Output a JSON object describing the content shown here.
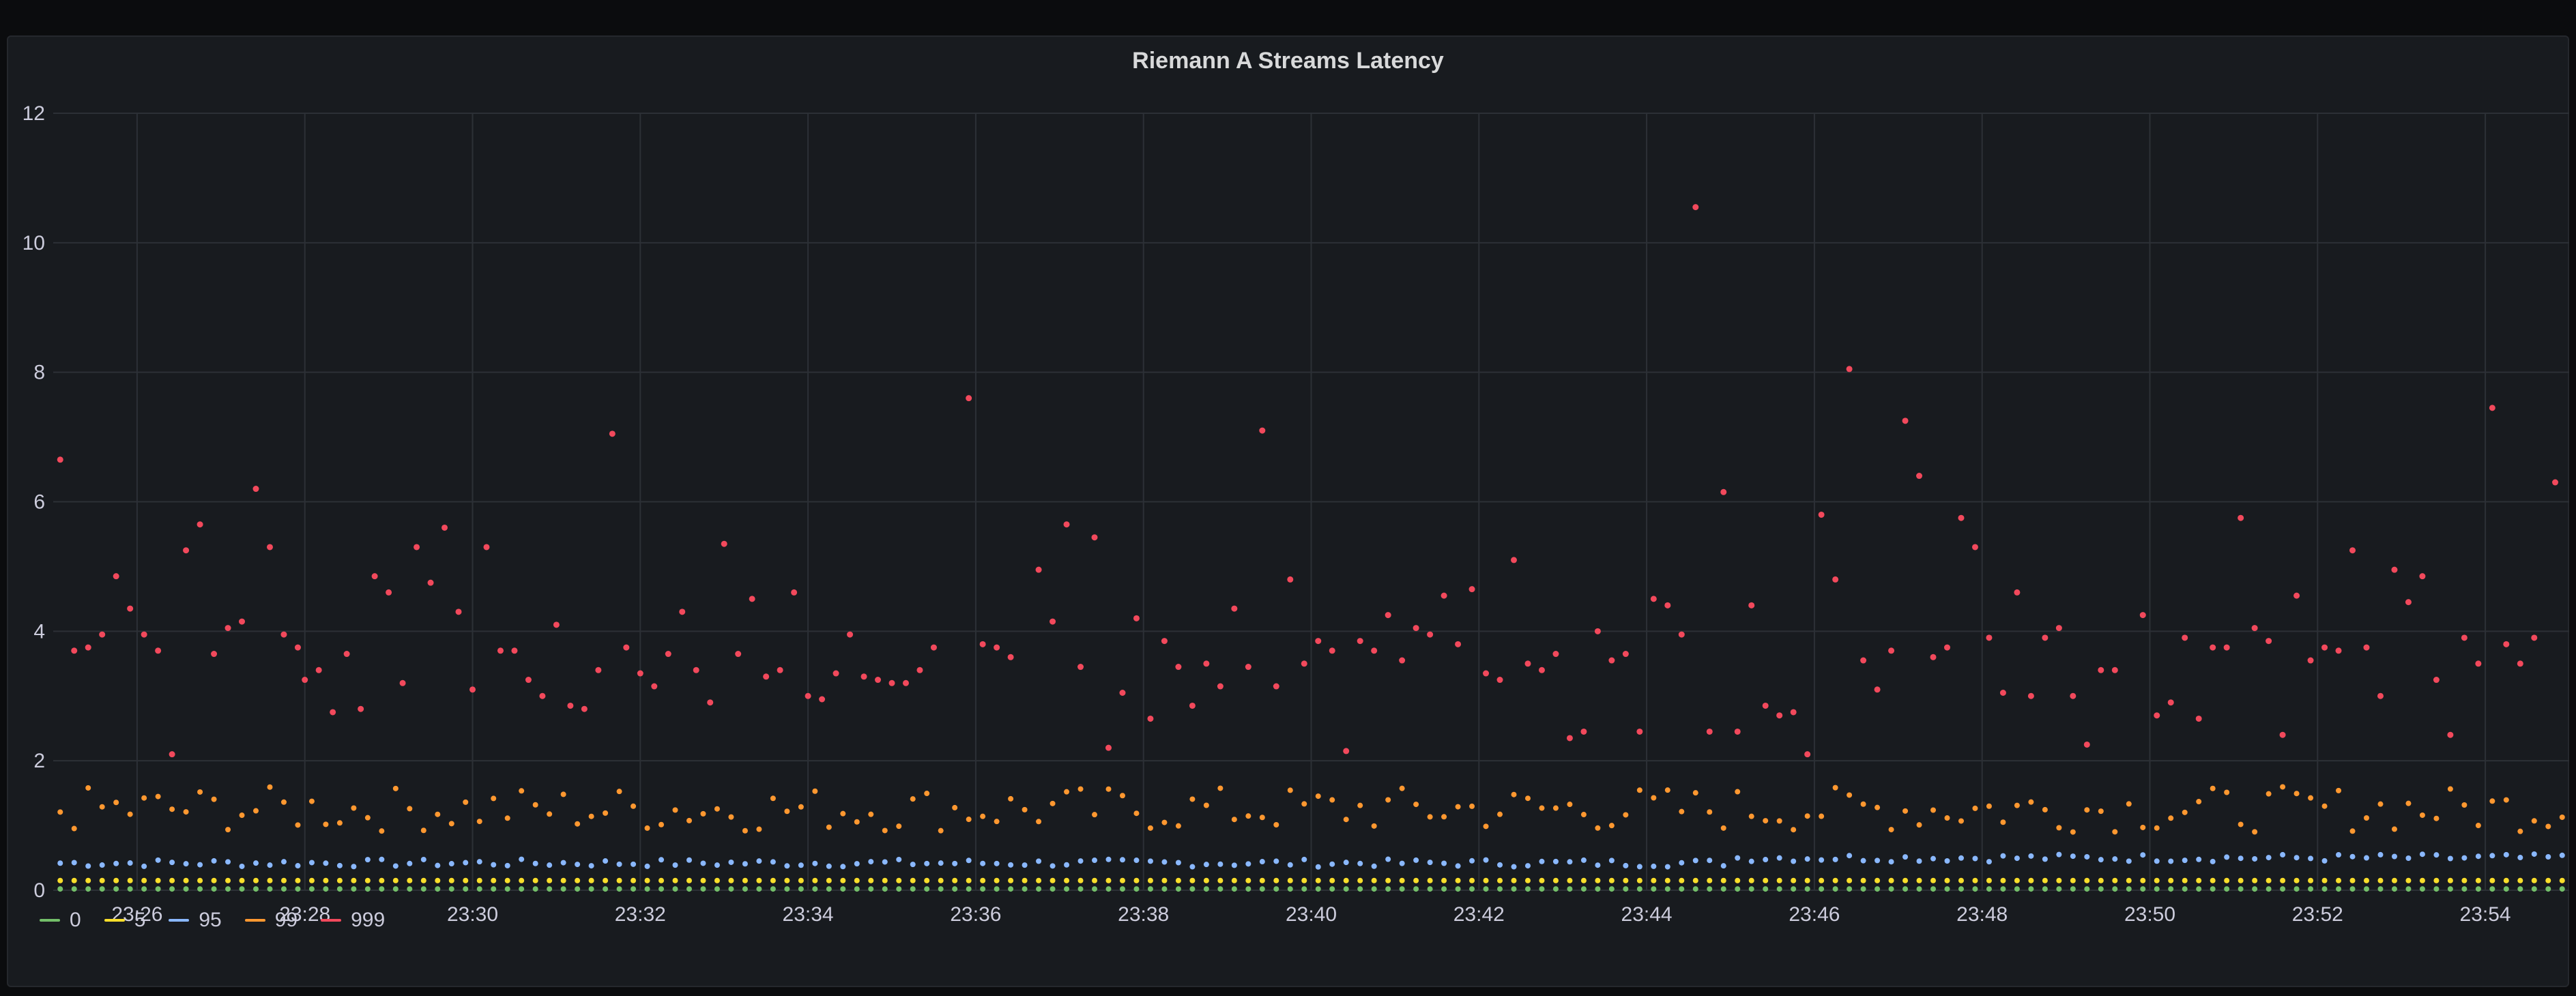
{
  "panel": {
    "title": "Riemann A Streams Latency"
  },
  "chart_data": {
    "type": "scatter",
    "title": "Riemann A Streams Latency",
    "x_tick_labels": [
      "23:26",
      "23:28",
      "23:30",
      "23:32",
      "23:34",
      "23:36",
      "23:38",
      "23:40",
      "23:42",
      "23:44",
      "23:46",
      "23:48",
      "23:50",
      "23:52",
      "23:54"
    ],
    "y_ticks": [
      0,
      2,
      4,
      6,
      8,
      10,
      12
    ],
    "ylim": [
      0,
      12
    ],
    "xlim_minutes": [
      "23:25",
      "23:55"
    ],
    "grid": true,
    "legend_position": "bottom-left",
    "series": [
      {
        "name": "0",
        "color": "#73bf69",
        "constant": 0.02
      },
      {
        "name": "5",
        "color": "#fade2a",
        "constant": 0.15
      },
      {
        "name": "95",
        "color": "#8ab8ff",
        "base": 0.42,
        "jitter": 0.06
      },
      {
        "name": "99",
        "color": "#ff9830",
        "base": 1.25,
        "jitter": 0.35
      },
      {
        "name": "999",
        "color": "#f2495c",
        "points": [
          {
            "t": "23:25:05",
            "v": 6.65
          },
          {
            "t": "23:25:15",
            "v": 3.7
          },
          {
            "t": "23:25:25",
            "v": 3.75
          },
          {
            "t": "23:25:35",
            "v": 3.95
          },
          {
            "t": "23:25:45",
            "v": 4.85
          },
          {
            "t": "23:25:55",
            "v": 4.35
          },
          {
            "t": "23:26:05",
            "v": 3.95
          },
          {
            "t": "23:26:15",
            "v": 3.7
          },
          {
            "t": "23:26:25",
            "v": 2.1
          },
          {
            "t": "23:26:35",
            "v": 5.25
          },
          {
            "t": "23:26:45",
            "v": 5.65
          },
          {
            "t": "23:26:55",
            "v": 3.65
          },
          {
            "t": "23:27:05",
            "v": 4.05
          },
          {
            "t": "23:27:15",
            "v": 4.15
          },
          {
            "t": "23:27:25",
            "v": 6.2
          },
          {
            "t": "23:27:35",
            "v": 5.3
          },
          {
            "t": "23:27:45",
            "v": 3.95
          },
          {
            "t": "23:27:55",
            "v": 3.75
          },
          {
            "t": "23:28:00",
            "v": 3.25
          },
          {
            "t": "23:28:10",
            "v": 3.4
          },
          {
            "t": "23:28:20",
            "v": 2.75
          },
          {
            "t": "23:28:30",
            "v": 3.65
          },
          {
            "t": "23:28:40",
            "v": 2.8
          },
          {
            "t": "23:28:50",
            "v": 4.85
          },
          {
            "t": "23:29:00",
            "v": 4.6
          },
          {
            "t": "23:29:10",
            "v": 3.2
          },
          {
            "t": "23:29:20",
            "v": 5.3
          },
          {
            "t": "23:29:30",
            "v": 4.75
          },
          {
            "t": "23:29:40",
            "v": 5.6
          },
          {
            "t": "23:29:50",
            "v": 4.3
          },
          {
            "t": "23:30:00",
            "v": 3.1
          },
          {
            "t": "23:30:10",
            "v": 5.3
          },
          {
            "t": "23:30:20",
            "v": 3.7
          },
          {
            "t": "23:30:30",
            "v": 3.7
          },
          {
            "t": "23:30:40",
            "v": 3.25
          },
          {
            "t": "23:30:50",
            "v": 3.0
          },
          {
            "t": "23:31:00",
            "v": 4.1
          },
          {
            "t": "23:31:10",
            "v": 2.85
          },
          {
            "t": "23:31:20",
            "v": 2.8
          },
          {
            "t": "23:31:30",
            "v": 3.4
          },
          {
            "t": "23:31:40",
            "v": 7.05
          },
          {
            "t": "23:31:50",
            "v": 3.75
          },
          {
            "t": "23:32:00",
            "v": 3.35
          },
          {
            "t": "23:32:10",
            "v": 3.15
          },
          {
            "t": "23:32:20",
            "v": 3.65
          },
          {
            "t": "23:32:30",
            "v": 4.3
          },
          {
            "t": "23:32:40",
            "v": 3.4
          },
          {
            "t": "23:32:50",
            "v": 2.9
          },
          {
            "t": "23:33:00",
            "v": 5.35
          },
          {
            "t": "23:33:10",
            "v": 3.65
          },
          {
            "t": "23:33:20",
            "v": 4.5
          },
          {
            "t": "23:33:30",
            "v": 3.3
          },
          {
            "t": "23:33:40",
            "v": 3.4
          },
          {
            "t": "23:33:50",
            "v": 4.6
          },
          {
            "t": "23:34:00",
            "v": 3.0
          },
          {
            "t": "23:34:10",
            "v": 2.95
          },
          {
            "t": "23:34:20",
            "v": 3.35
          },
          {
            "t": "23:34:30",
            "v": 3.95
          },
          {
            "t": "23:34:40",
            "v": 3.3
          },
          {
            "t": "23:34:50",
            "v": 3.25
          },
          {
            "t": "23:35:00",
            "v": 3.2
          },
          {
            "t": "23:35:10",
            "v": 3.2
          },
          {
            "t": "23:35:20",
            "v": 3.4
          },
          {
            "t": "23:35:30",
            "v": 3.75
          },
          {
            "t": "23:35:55",
            "v": 7.6
          },
          {
            "t": "23:36:05",
            "v": 3.8
          },
          {
            "t": "23:36:15",
            "v": 3.75
          },
          {
            "t": "23:36:25",
            "v": 3.6
          },
          {
            "t": "23:36:45",
            "v": 4.95
          },
          {
            "t": "23:36:55",
            "v": 4.15
          },
          {
            "t": "23:37:05",
            "v": 5.65
          },
          {
            "t": "23:37:15",
            "v": 3.45
          },
          {
            "t": "23:37:25",
            "v": 5.45
          },
          {
            "t": "23:37:35",
            "v": 2.2
          },
          {
            "t": "23:37:45",
            "v": 3.05
          },
          {
            "t": "23:37:55",
            "v": 4.2
          },
          {
            "t": "23:38:05",
            "v": 2.65
          },
          {
            "t": "23:38:15",
            "v": 3.85
          },
          {
            "t": "23:38:25",
            "v": 3.45
          },
          {
            "t": "23:38:35",
            "v": 2.85
          },
          {
            "t": "23:38:45",
            "v": 3.5
          },
          {
            "t": "23:38:55",
            "v": 3.15
          },
          {
            "t": "23:39:05",
            "v": 4.35
          },
          {
            "t": "23:39:15",
            "v": 3.45
          },
          {
            "t": "23:39:25",
            "v": 7.1
          },
          {
            "t": "23:39:35",
            "v": 3.15
          },
          {
            "t": "23:39:45",
            "v": 4.8
          },
          {
            "t": "23:39:55",
            "v": 3.5
          },
          {
            "t": "23:40:05",
            "v": 3.85
          },
          {
            "t": "23:40:15",
            "v": 3.7
          },
          {
            "t": "23:40:25",
            "v": 2.15
          },
          {
            "t": "23:40:35",
            "v": 3.85
          },
          {
            "t": "23:40:45",
            "v": 3.7
          },
          {
            "t": "23:40:55",
            "v": 4.25
          },
          {
            "t": "23:41:05",
            "v": 3.55
          },
          {
            "t": "23:41:15",
            "v": 4.05
          },
          {
            "t": "23:41:25",
            "v": 3.95
          },
          {
            "t": "23:41:35",
            "v": 4.55
          },
          {
            "t": "23:41:45",
            "v": 3.8
          },
          {
            "t": "23:41:55",
            "v": 4.65
          },
          {
            "t": "23:42:05",
            "v": 3.35
          },
          {
            "t": "23:42:15",
            "v": 3.25
          },
          {
            "t": "23:42:25",
            "v": 5.1
          },
          {
            "t": "23:42:35",
            "v": 3.5
          },
          {
            "t": "23:42:45",
            "v": 3.4
          },
          {
            "t": "23:42:55",
            "v": 3.65
          },
          {
            "t": "23:43:05",
            "v": 2.35
          },
          {
            "t": "23:43:15",
            "v": 2.45
          },
          {
            "t": "23:43:25",
            "v": 4.0
          },
          {
            "t": "23:43:35",
            "v": 3.55
          },
          {
            "t": "23:43:45",
            "v": 3.65
          },
          {
            "t": "23:43:55",
            "v": 2.45
          },
          {
            "t": "23:44:05",
            "v": 4.5
          },
          {
            "t": "23:44:15",
            "v": 4.4
          },
          {
            "t": "23:44:25",
            "v": 3.95
          },
          {
            "t": "23:44:35",
            "v": 10.55
          },
          {
            "t": "23:44:45",
            "v": 2.45
          },
          {
            "t": "23:44:55",
            "v": 6.15
          },
          {
            "t": "23:45:05",
            "v": 2.45
          },
          {
            "t": "23:45:15",
            "v": 4.4
          },
          {
            "t": "23:45:25",
            "v": 2.85
          },
          {
            "t": "23:45:35",
            "v": 2.7
          },
          {
            "t": "23:45:45",
            "v": 2.75
          },
          {
            "t": "23:45:55",
            "v": 2.1
          },
          {
            "t": "23:46:05",
            "v": 5.8
          },
          {
            "t": "23:46:15",
            "v": 4.8
          },
          {
            "t": "23:46:25",
            "v": 8.05
          },
          {
            "t": "23:46:35",
            "v": 3.55
          },
          {
            "t": "23:46:45",
            "v": 3.1
          },
          {
            "t": "23:46:55",
            "v": 3.7
          },
          {
            "t": "23:47:05",
            "v": 7.25
          },
          {
            "t": "23:47:15",
            "v": 6.4
          },
          {
            "t": "23:47:25",
            "v": 3.6
          },
          {
            "t": "23:47:35",
            "v": 3.75
          },
          {
            "t": "23:47:45",
            "v": 5.75
          },
          {
            "t": "23:47:55",
            "v": 5.3
          },
          {
            "t": "23:48:05",
            "v": 3.9
          },
          {
            "t": "23:48:15",
            "v": 3.05
          },
          {
            "t": "23:48:25",
            "v": 4.6
          },
          {
            "t": "23:48:35",
            "v": 3.0
          },
          {
            "t": "23:48:45",
            "v": 3.9
          },
          {
            "t": "23:48:55",
            "v": 4.05
          },
          {
            "t": "23:49:05",
            "v": 3.0
          },
          {
            "t": "23:49:15",
            "v": 2.25
          },
          {
            "t": "23:49:25",
            "v": 3.4
          },
          {
            "t": "23:49:35",
            "v": 3.4
          },
          {
            "t": "23:49:55",
            "v": 4.25
          },
          {
            "t": "23:50:05",
            "v": 2.7
          },
          {
            "t": "23:50:15",
            "v": 2.9
          },
          {
            "t": "23:50:25",
            "v": 3.9
          },
          {
            "t": "23:50:35",
            "v": 2.65
          },
          {
            "t": "23:50:45",
            "v": 3.75
          },
          {
            "t": "23:50:55",
            "v": 3.75
          },
          {
            "t": "23:51:05",
            "v": 5.75
          },
          {
            "t": "23:51:15",
            "v": 4.05
          },
          {
            "t": "23:51:25",
            "v": 3.85
          },
          {
            "t": "23:51:35",
            "v": 2.4
          },
          {
            "t": "23:51:45",
            "v": 4.55
          },
          {
            "t": "23:51:55",
            "v": 3.55
          },
          {
            "t": "23:52:05",
            "v": 3.75
          },
          {
            "t": "23:52:15",
            "v": 3.7
          },
          {
            "t": "23:52:25",
            "v": 5.25
          },
          {
            "t": "23:52:35",
            "v": 3.75
          },
          {
            "t": "23:52:45",
            "v": 3.0
          },
          {
            "t": "23:52:55",
            "v": 4.95
          },
          {
            "t": "23:53:05",
            "v": 4.45
          },
          {
            "t": "23:53:15",
            "v": 4.85
          },
          {
            "t": "23:53:25",
            "v": 3.25
          },
          {
            "t": "23:53:35",
            "v": 2.4
          },
          {
            "t": "23:53:45",
            "v": 3.9
          },
          {
            "t": "23:53:55",
            "v": 3.5
          },
          {
            "t": "23:54:05",
            "v": 7.45
          },
          {
            "t": "23:54:15",
            "v": 3.8
          },
          {
            "t": "23:54:25",
            "v": 3.5
          },
          {
            "t": "23:54:35",
            "v": 3.9
          },
          {
            "t": "23:54:50",
            "v": 6.3
          }
        ]
      }
    ]
  },
  "legend": {
    "items": [
      {
        "label": "0",
        "color": "#73bf69"
      },
      {
        "label": "5",
        "color": "#fade2a"
      },
      {
        "label": "95",
        "color": "#8ab8ff"
      },
      {
        "label": "99",
        "color": "#ff9830"
      },
      {
        "label": "999",
        "color": "#f2495c"
      }
    ]
  }
}
